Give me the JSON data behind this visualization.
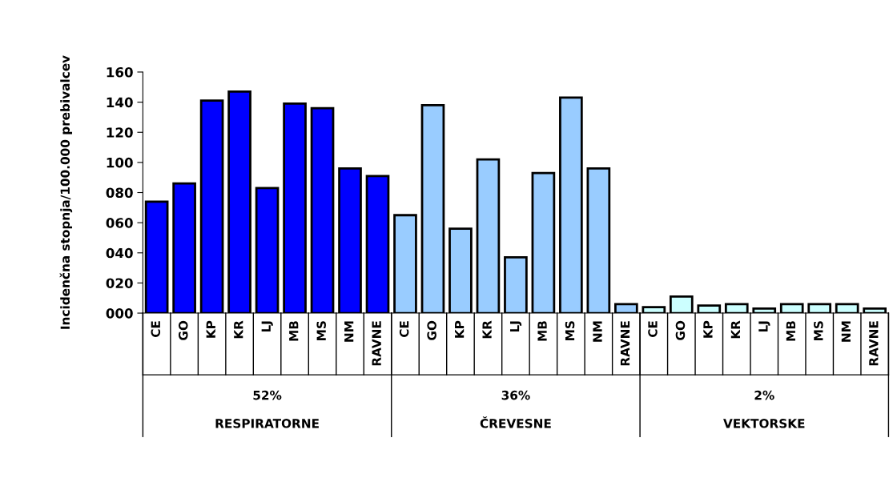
{
  "chart_data": {
    "type": "bar",
    "ylabel": "Incidenčna stopnja/100.000 prebivalcev",
    "categories": [
      "CE",
      "GO",
      "KP",
      "KR",
      "LJ",
      "MB",
      "MS",
      "NM",
      "RAVNE",
      "CE",
      "GO",
      "KP",
      "KR",
      "LJ",
      "MB",
      "MS",
      "NM",
      "RAVNE",
      "CE",
      "GO",
      "KP",
      "KR",
      "LJ",
      "MB",
      "MS",
      "NM",
      "RAVNE"
    ],
    "values": [
      74,
      86,
      141,
      147,
      83,
      139,
      136,
      96,
      91,
      65,
      138,
      56,
      102,
      37,
      93,
      143,
      96,
      6,
      4,
      11,
      5,
      6,
      3,
      6,
      6,
      6,
      3
    ],
    "colors": [
      "#0000ff",
      "#0000ff",
      "#0000ff",
      "#0000ff",
      "#0000ff",
      "#0000ff",
      "#0000ff",
      "#0000ff",
      "#0000ff",
      "#99ccff",
      "#99ccff",
      "#99ccff",
      "#99ccff",
      "#99ccff",
      "#99ccff",
      "#99ccff",
      "#99ccff",
      "#99ccff",
      "#ccffff",
      "#ccffff",
      "#ccffff",
      "#ccffff",
      "#ccffff",
      "#ccffff",
      "#ccffff",
      "#ccffff",
      "#ccffff"
    ],
    "annotations": [
      "52%",
      "36%",
      "2%",
      "RESPIRATORNE",
      "ČREVESNE",
      "VEKTORSKE"
    ],
    "ylim": [
      0,
      160
    ],
    "yticks": [
      {
        "value": 0,
        "label": "000"
      },
      {
        "value": 20,
        "label": "020"
      },
      {
        "value": 40,
        "label": "040"
      },
      {
        "value": 60,
        "label": "060"
      },
      {
        "value": 80,
        "label": "080"
      },
      {
        "value": 100,
        "label": "100"
      },
      {
        "value": 120,
        "label": "120"
      },
      {
        "value": 140,
        "label": "140"
      },
      {
        "value": 160,
        "label": "160"
      }
    ],
    "grid": false
  }
}
